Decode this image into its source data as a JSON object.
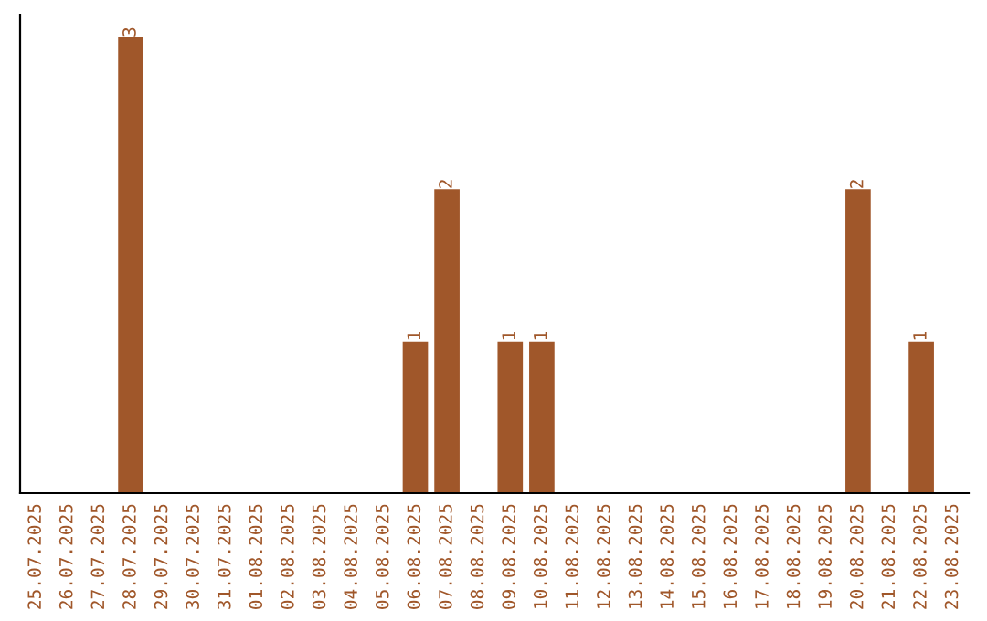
{
  "chart_data": {
    "type": "bar",
    "categories": [
      "25.07.2025",
      "26.07.2025",
      "27.07.2025",
      "28.07.2025",
      "29.07.2025",
      "30.07.2025",
      "31.07.2025",
      "01.08.2025",
      "02.08.2025",
      "03.08.2025",
      "04.08.2025",
      "05.08.2025",
      "06.08.2025",
      "07.08.2025",
      "08.08.2025",
      "09.08.2025",
      "10.08.2025",
      "11.08.2025",
      "12.08.2025",
      "13.08.2025",
      "14.08.2025",
      "15.08.2025",
      "16.08.2025",
      "17.08.2025",
      "18.08.2025",
      "19.08.2025",
      "20.08.2025",
      "21.08.2025",
      "22.08.2025",
      "23.08.2025"
    ],
    "values": [
      0,
      0,
      0,
      3,
      0,
      0,
      0,
      0,
      0,
      0,
      0,
      0,
      1,
      2,
      0,
      1,
      1,
      0,
      0,
      0,
      0,
      0,
      0,
      0,
      0,
      0,
      2,
      0,
      1,
      0
    ],
    "value_labels": [
      null,
      null,
      null,
      "3",
      null,
      null,
      null,
      null,
      null,
      null,
      null,
      null,
      "1",
      "2",
      null,
      "1",
      "1",
      null,
      null,
      null,
      null,
      null,
      null,
      null,
      null,
      null,
      "2",
      null,
      "1",
      null
    ],
    "color": "#a0572a",
    "tick_labels": "x",
    "grid": false,
    "legend": false
  }
}
